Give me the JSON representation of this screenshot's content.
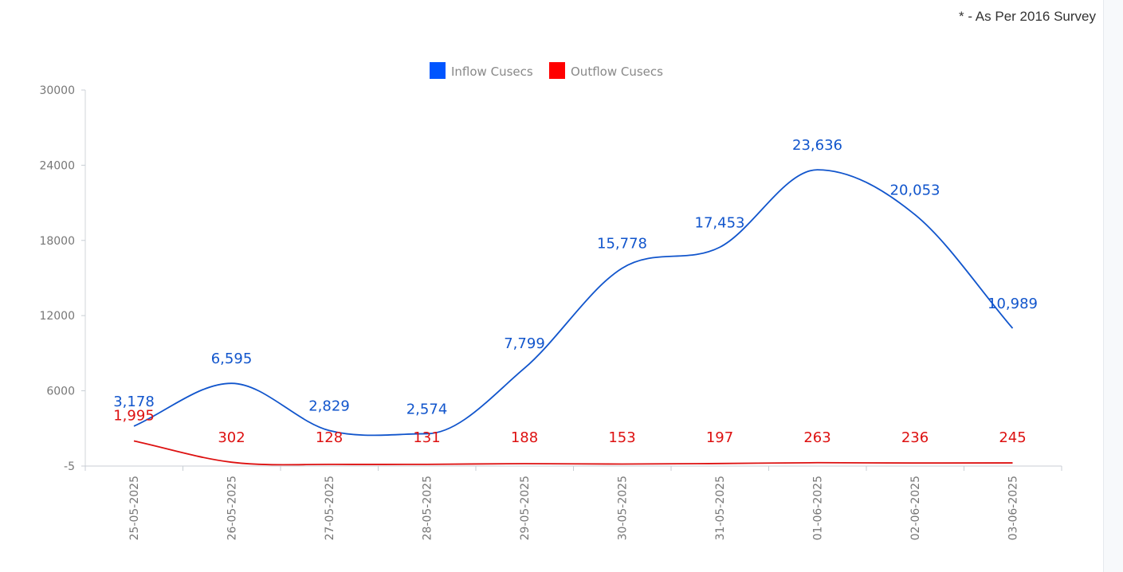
{
  "note": "* - As Per 2016 Survey",
  "chart_data": {
    "type": "line",
    "smooth": true,
    "categories": [
      "25-05-2025",
      "26-05-2025",
      "27-05-2025",
      "28-05-2025",
      "29-05-2025",
      "30-05-2025",
      "31-05-2025",
      "01-06-2025",
      "02-06-2025",
      "03-06-2025"
    ],
    "series": [
      {
        "name": "Inflow Cusecs",
        "color": "#1155cc",
        "legend_color": "#0055ff",
        "values": [
          3178,
          6595,
          2829,
          2574,
          7799,
          15778,
          17453,
          23636,
          20053,
          10989
        ],
        "labels": [
          "3,178",
          "6,595",
          "2,829",
          "2,574",
          "7,799",
          "15,778",
          "17,453",
          "23,636",
          "20,053",
          "10,989"
        ]
      },
      {
        "name": "Outflow Cusecs",
        "color": "#dd1111",
        "legend_color": "#ff0000",
        "values": [
          1995,
          302,
          128,
          131,
          188,
          153,
          197,
          263,
          236,
          245
        ],
        "labels": [
          "1,995",
          "302",
          "128",
          "131",
          "188",
          "153",
          "197",
          "263",
          "236",
          "245"
        ]
      }
    ],
    "y_ticks": [
      "-5",
      "6000",
      "12000",
      "18000",
      "24000",
      "30000"
    ],
    "ylim": [
      -5,
      30000
    ],
    "legend": "top-center",
    "grid": false,
    "title": "",
    "xlabel": "",
    "ylabel": ""
  }
}
